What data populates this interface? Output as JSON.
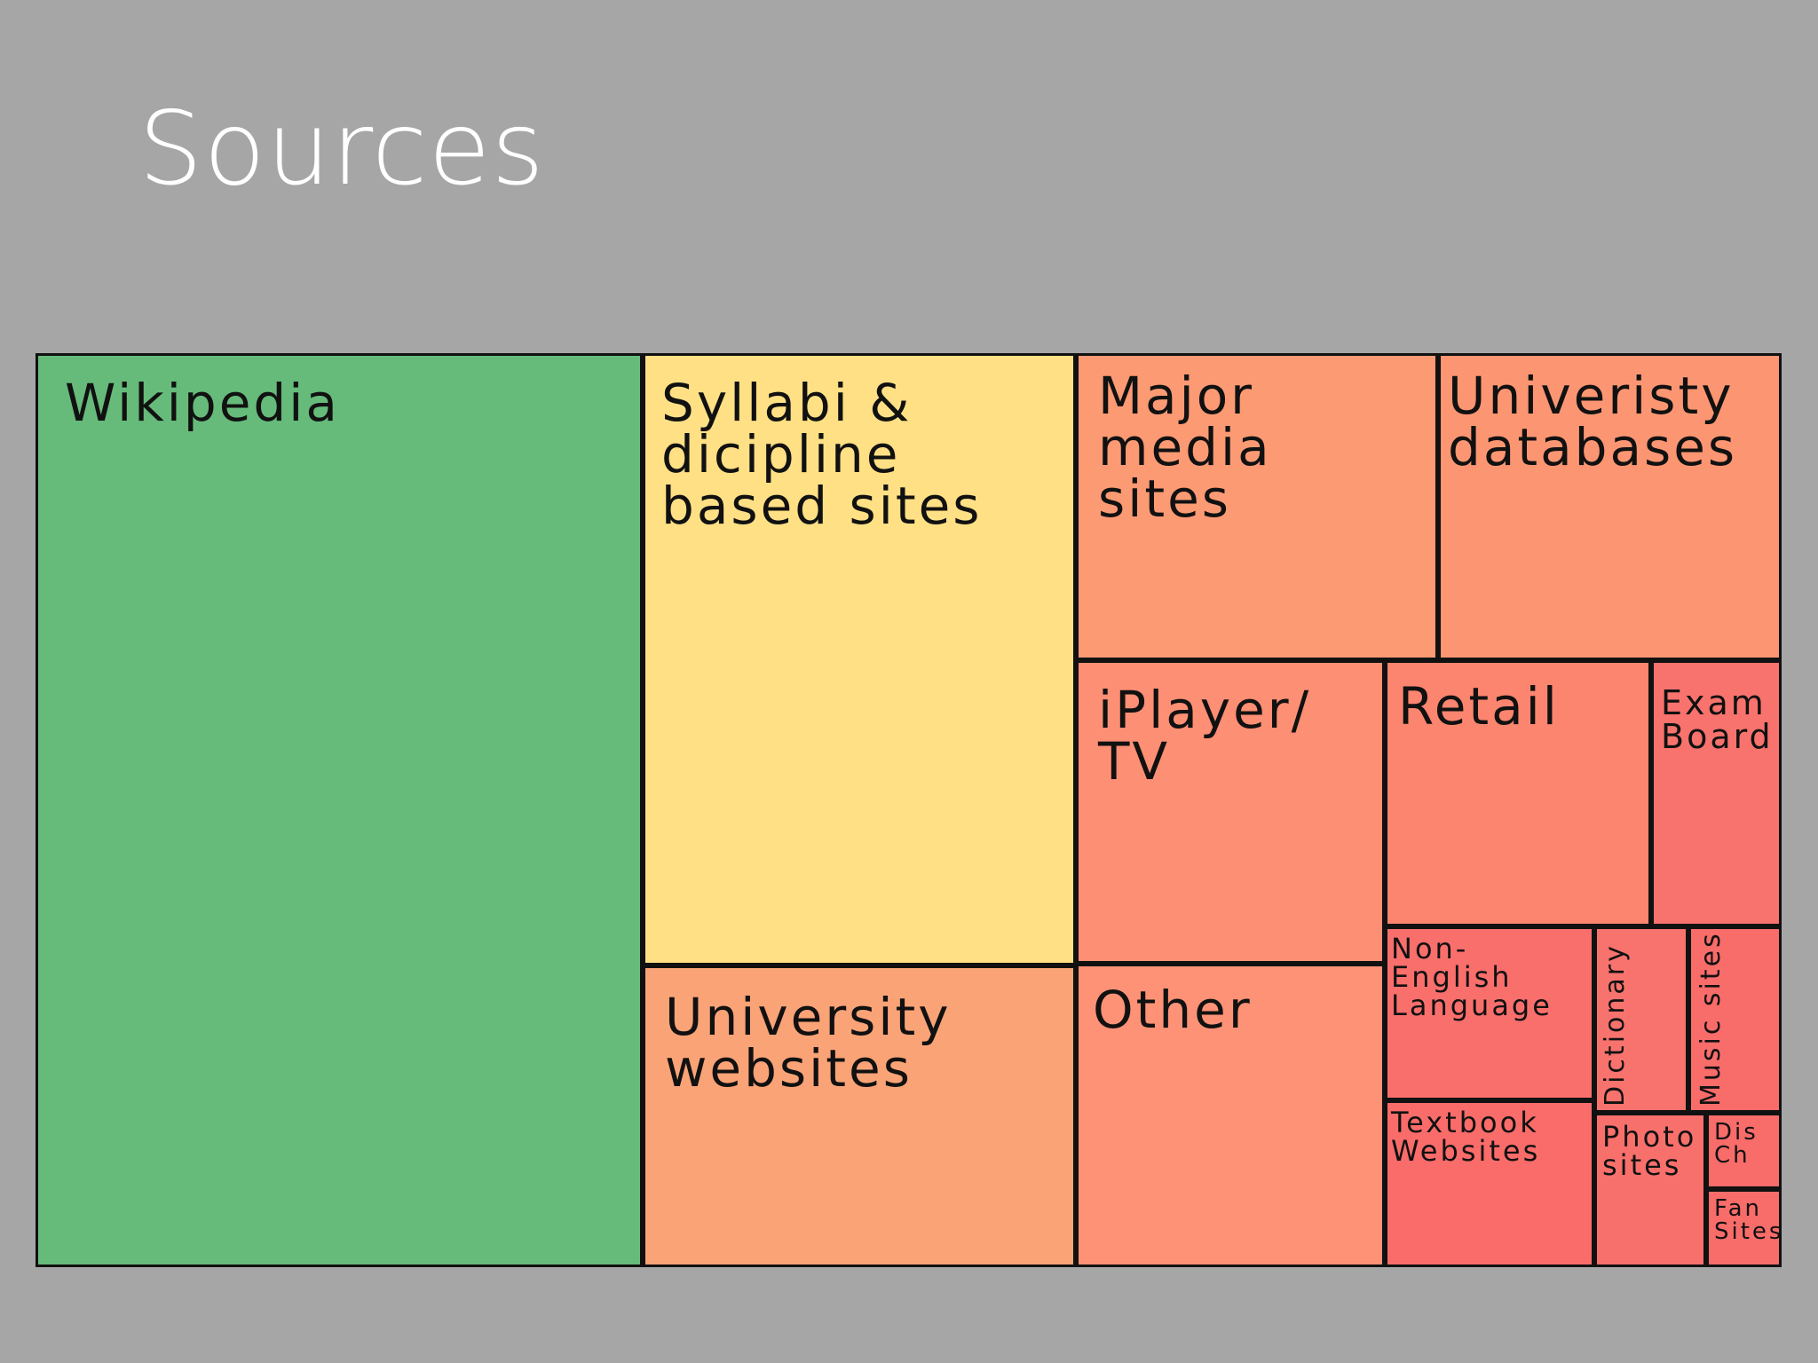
{
  "slide": {
    "title": "Sources"
  },
  "chart_data": {
    "type": "treemap",
    "title": "",
    "items": [
      {
        "label": "Wikipedia",
        "color": "#66bb7a"
      },
      {
        "label": "Syllabi &\ndicipline\nbased sites",
        "color": "#ffe085"
      },
      {
        "label": "University\nwebsites",
        "color": "#f9a377"
      },
      {
        "label": "Major\nmedia\nsites",
        "color": "#fc9a74"
      },
      {
        "label": "Univeristy\ndatabases",
        "color": "#fc9672"
      },
      {
        "label": "iPlayer/\nTV",
        "color": "#fc8f74"
      },
      {
        "label": "Retail",
        "color": "#fb856f"
      },
      {
        "label": "Exam\nBoard",
        "color": "#f8736d"
      },
      {
        "label": "Other",
        "color": "#fd9276"
      },
      {
        "label": "Non-\nEnglish\nLanguage",
        "color": "#f96f6c"
      },
      {
        "label": "Dictionary",
        "color": "#f8736d"
      },
      {
        "label": "Music sites",
        "color": "#f86c6a"
      },
      {
        "label": "Textbook\nWebsites",
        "color": "#f96c6a"
      },
      {
        "label": "Photo\nsites",
        "color": "#f8706c"
      },
      {
        "label": "Dis\nCh",
        "color": "#f86c6a"
      },
      {
        "label": "Fan\nSites",
        "color": "#f86c6a"
      }
    ]
  }
}
